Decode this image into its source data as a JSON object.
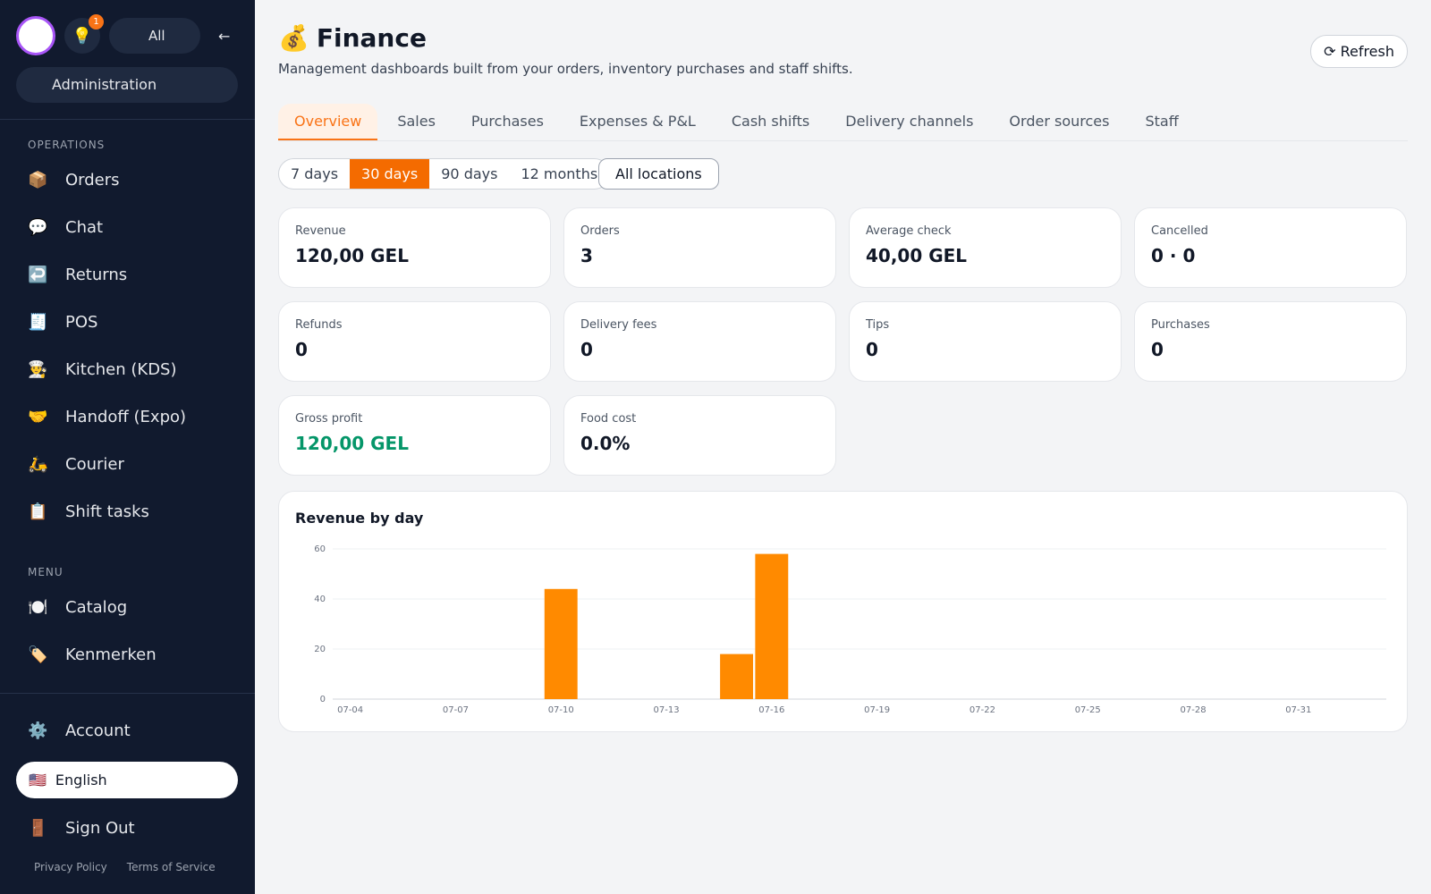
{
  "sidebar": {
    "store_filter": "All",
    "notifications": 1,
    "role": "Administration",
    "back": "←",
    "sections": [
      {
        "title": "OPERATIONS",
        "items": [
          {
            "icon": "📦",
            "label": "Orders"
          },
          {
            "icon": "💬",
            "label": "Chat"
          },
          {
            "icon": "↩️",
            "label": "Returns"
          },
          {
            "icon": "🧾",
            "label": "POS"
          },
          {
            "icon": "👨‍🍳",
            "label": "Kitchen (KDS)"
          },
          {
            "icon": "🤝",
            "label": "Handoff (Expo)"
          },
          {
            "icon": "🛵",
            "label": "Courier"
          },
          {
            "icon": "📋",
            "label": "Shift tasks"
          }
        ]
      },
      {
        "title": "MENU",
        "items": [
          {
            "icon": "🍽️",
            "label": "Catalog"
          },
          {
            "icon": "🏷️",
            "label": "Kenmerken"
          }
        ]
      }
    ],
    "account": {
      "icon": "⚙️",
      "label": "Account"
    },
    "language": {
      "icon": "🇺🇸",
      "label": "English"
    },
    "sign_out": {
      "icon": "🚪",
      "label": "Sign Out"
    },
    "footer_links": [
      "Privacy Policy",
      "Terms of Service"
    ]
  },
  "header": {
    "icon": "💰",
    "title": "Finance",
    "subtitle": "Management dashboards built from your orders, inventory purchases and staff shifts.",
    "refresh": "⟳ Refresh"
  },
  "tabs": [
    "Overview",
    "Sales",
    "Purchases",
    "Expenses & P&L",
    "Cash shifts",
    "Delivery channels",
    "Order sources",
    "Staff"
  ],
  "ranges": [
    "7 days",
    "30 days",
    "90 days",
    "12 months"
  ],
  "location_select": "All locations",
  "kpis": [
    {
      "label": "Revenue",
      "value": "120,00 GEL"
    },
    {
      "label": "Orders",
      "value": "3"
    },
    {
      "label": "Average check",
      "value": "40,00 GEL"
    },
    {
      "label": "Cancelled",
      "value": "0 · 0"
    },
    {
      "label": "Refunds",
      "value": "0"
    },
    {
      "label": "Delivery fees",
      "value": "0"
    },
    {
      "label": "Tips",
      "value": "0"
    },
    {
      "label": "Purchases",
      "value": "0"
    },
    {
      "label": "Gross profit",
      "value": "120,00 GEL"
    },
    {
      "label": "Food cost",
      "value": "0.0%"
    }
  ],
  "chart_data": {
    "type": "bar",
    "title": "Revenue by day",
    "categories": [
      "07-04",
      null,
      null,
      "07-07",
      null,
      null,
      "07-10",
      null,
      null,
      "07-13",
      null,
      null,
      "07-16",
      null,
      null,
      "07-19",
      null,
      null,
      "07-22",
      null,
      null,
      "07-25",
      null,
      null,
      "07-28",
      null,
      null,
      "07-31",
      null,
      null
    ],
    "values": [
      0,
      0,
      0,
      0,
      0,
      0,
      44,
      0,
      0,
      0,
      0,
      18,
      58,
      0,
      0,
      0,
      0,
      0,
      0,
      0,
      0,
      0,
      0,
      0,
      0,
      0,
      0,
      0,
      0,
      0
    ],
    "color": "#ff8a00",
    "ylim": [
      0,
      60
    ],
    "yticks": [
      0,
      20,
      40,
      60
    ],
    "grid": true
  }
}
